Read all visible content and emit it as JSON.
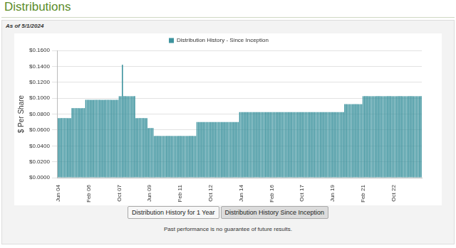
{
  "chart_data": {
    "type": "bar",
    "title": "Distributions",
    "subtitle": "As of 5/1/2024",
    "y_label": "$ Per Share",
    "buttons": [
      "Distribution History for 1 Year",
      "Distribution History Since Inception"
    ],
    "footnote": "Past performance is no guarantee of future results.",
    "legend": "top",
    "grid": true,
    "ylim": [
      0,
      0.16
    ],
    "yticks": [
      {
        "value": 0,
        "label": "$0.0000"
      },
      {
        "value": 0.02,
        "label": "$0.0200"
      },
      {
        "value": 0.04,
        "label": "$0.0400"
      },
      {
        "value": 0.06,
        "label": "$0.0600"
      },
      {
        "value": 0.08,
        "label": "$0.0800"
      },
      {
        "value": 0.1,
        "label": "$0.1000"
      },
      {
        "value": 0.12,
        "label": "$0.1200"
      },
      {
        "value": 0.14,
        "label": "$0.1400"
      },
      {
        "value": 0.16,
        "label": "$0.1600"
      }
    ],
    "categories": [
      "Jun 04",
      null,
      null,
      null,
      null,
      null,
      null,
      null,
      null,
      null,
      null,
      null,
      null,
      null,
      null,
      null,
      null,
      null,
      null,
      null,
      "Feb 06",
      null,
      null,
      null,
      null,
      null,
      null,
      null,
      null,
      null,
      null,
      null,
      null,
      null,
      null,
      null,
      null,
      null,
      null,
      null,
      "Oct 07",
      null,
      null,
      null,
      null,
      null,
      null,
      null,
      null,
      null,
      null,
      null,
      null,
      null,
      null,
      null,
      null,
      null,
      null,
      null,
      "Jun 09",
      null,
      null,
      null,
      null,
      null,
      null,
      null,
      null,
      null,
      null,
      null,
      null,
      null,
      null,
      null,
      null,
      null,
      null,
      null,
      "Feb 11",
      null,
      null,
      null,
      null,
      null,
      null,
      null,
      null,
      null,
      null,
      null,
      null,
      null,
      null,
      null,
      null,
      null,
      null,
      null,
      "Oct 12",
      null,
      null,
      null,
      null,
      null,
      null,
      null,
      null,
      null,
      null,
      null,
      null,
      null,
      null,
      null,
      null,
      null,
      null,
      null,
      "Jun 14",
      null,
      null,
      null,
      null,
      null,
      null,
      null,
      null,
      null,
      null,
      null,
      null,
      null,
      null,
      null,
      null,
      null,
      null,
      null,
      "Feb 16",
      null,
      null,
      null,
      null,
      null,
      null,
      null,
      null,
      null,
      null,
      null,
      null,
      null,
      null,
      null,
      null,
      null,
      null,
      null,
      "Oct 17",
      null,
      null,
      null,
      null,
      null,
      null,
      null,
      null,
      null,
      null,
      null,
      null,
      null,
      null,
      null,
      null,
      null,
      null,
      null,
      "Jun 19",
      null,
      null,
      null,
      null,
      null,
      null,
      null,
      null,
      null,
      null,
      null,
      null,
      null,
      null,
      null,
      null,
      null,
      null,
      null,
      "Feb 21",
      null,
      null,
      null,
      null,
      null,
      null,
      null,
      null,
      null,
      null,
      null,
      null,
      null,
      null,
      null,
      null,
      null,
      null,
      null,
      "Oct 22",
      null,
      null,
      null,
      null,
      null,
      null,
      null,
      null,
      null,
      null,
      null,
      null,
      null,
      null,
      null,
      null,
      null,
      null
    ],
    "series": [
      {
        "name": "Distribution History - Since Inception",
        "color": "#3d939e",
        "values": [
          0.075,
          0.075,
          0.075,
          0.075,
          0.075,
          0.075,
          0.075,
          0.075,
          0.075,
          0.0875,
          0.0875,
          0.0875,
          0.0875,
          0.0875,
          0.0875,
          0.0875,
          0.0875,
          0.0875,
          0.098,
          0.098,
          0.098,
          0.098,
          0.098,
          0.098,
          0.098,
          0.098,
          0.098,
          0.098,
          0.098,
          0.098,
          0.098,
          0.098,
          0.098,
          0.098,
          0.098,
          0.098,
          0.098,
          0.098,
          0.098,
          0.098,
          0.1025,
          0.1025,
          0.142,
          0.1025,
          0.1025,
          0.1025,
          0.1025,
          0.1025,
          0.1025,
          0.1025,
          0.1025,
          0.075,
          0.075,
          0.075,
          0.075,
          0.075,
          0.075,
          0.075,
          0.075,
          0.0625,
          0.0625,
          0.0625,
          0.0625,
          0.0525,
          0.0525,
          0.0525,
          0.0525,
          0.0525,
          0.0525,
          0.0525,
          0.0525,
          0.0525,
          0.0525,
          0.0525,
          0.0525,
          0.0525,
          0.0525,
          0.0525,
          0.0525,
          0.0525,
          0.0525,
          0.0525,
          0.0525,
          0.0525,
          0.0525,
          0.0525,
          0.0525,
          0.0525,
          0.0525,
          0.0525,
          0.0525,
          0.07,
          0.07,
          0.07,
          0.07,
          0.07,
          0.07,
          0.07,
          0.07,
          0.07,
          0.07,
          0.07,
          0.07,
          0.07,
          0.07,
          0.07,
          0.07,
          0.07,
          0.07,
          0.07,
          0.07,
          0.07,
          0.07,
          0.07,
          0.07,
          0.07,
          0.07,
          0.07,
          0.07,
          0.0825,
          0.0825,
          0.0825,
          0.0825,
          0.0825,
          0.0825,
          0.0825,
          0.0825,
          0.0825,
          0.0825,
          0.0825,
          0.0825,
          0.0825,
          0.0825,
          0.0825,
          0.0825,
          0.0825,
          0.0825,
          0.0825,
          0.0825,
          0.0825,
          0.0825,
          0.0825,
          0.0825,
          0.0825,
          0.0825,
          0.0825,
          0.0825,
          0.0825,
          0.0825,
          0.0825,
          0.0825,
          0.0825,
          0.0825,
          0.0825,
          0.0825,
          0.0825,
          0.0825,
          0.0825,
          0.0825,
          0.0825,
          0.0825,
          0.0825,
          0.0825,
          0.0825,
          0.0825,
          0.0825,
          0.0825,
          0.0825,
          0.0825,
          0.0825,
          0.0825,
          0.0825,
          0.0825,
          0.0825,
          0.0825,
          0.0825,
          0.0825,
          0.0825,
          0.0825,
          0.0825,
          0.0825,
          0.0825,
          0.0825,
          0.0825,
          0.0825,
          0.0825,
          0.0825,
          0.0825,
          0.0925,
          0.0925,
          0.0925,
          0.0925,
          0.0925,
          0.0925,
          0.0925,
          0.0925,
          0.0925,
          0.0925,
          0.0925,
          0.0925,
          0.1025,
          0.1025,
          0.1025,
          0.1025,
          0.1025,
          0.1025,
          0.1025,
          0.1025,
          0.1025,
          0.1025,
          0.1025,
          0.1025,
          0.1025,
          0.1025,
          0.1025,
          0.1025,
          0.1025,
          0.1025,
          0.1025,
          0.1025,
          0.1025,
          0.1025,
          0.1025,
          0.1025,
          0.1025,
          0.1025,
          0.1025,
          0.1025,
          0.1025,
          0.1025,
          0.1025,
          0.1025,
          0.1025,
          0.1025,
          0.1025,
          0.1025,
          0.1025,
          0.1025,
          0.1025
        ]
      }
    ]
  }
}
